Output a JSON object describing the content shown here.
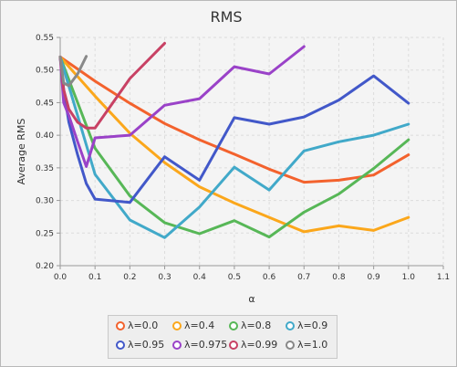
{
  "chart_data": {
    "type": "line",
    "title": "RMS",
    "xlabel": "α",
    "ylabel": "Average RMS",
    "xlim": [
      0.0,
      1.1
    ],
    "ylim": [
      0.2,
      0.55
    ],
    "xticks": [
      "0.0",
      "0.1",
      "0.2",
      "0.3",
      "0.4",
      "0.5",
      "0.6",
      "0.7",
      "0.8",
      "0.9",
      "1.0",
      "1.1"
    ],
    "yticks": [
      "0.20",
      "0.25",
      "0.30",
      "0.35",
      "0.40",
      "0.45",
      "0.50",
      "0.55"
    ],
    "grid": true,
    "legend_position": "bottom",
    "series": [
      {
        "name": "λ=0.0",
        "color": "#f3622d",
        "x": [
          0.0,
          0.1,
          0.2,
          0.3,
          0.4,
          0.5,
          0.6,
          0.7,
          0.8,
          0.9,
          1.0
        ],
        "y": [
          0.52,
          0.483,
          0.449,
          0.418,
          0.393,
          0.371,
          0.348,
          0.328,
          0.331,
          0.339,
          0.37
        ]
      },
      {
        "name": "λ=0.4",
        "color": "#fba71b",
        "x": [
          0.0,
          0.1,
          0.2,
          0.3,
          0.4,
          0.5,
          0.6,
          0.7,
          0.8,
          0.9,
          1.0
        ],
        "y": [
          0.52,
          0.46,
          0.403,
          0.358,
          0.321,
          0.296,
          0.274,
          0.252,
          0.261,
          0.254,
          0.274
        ]
      },
      {
        "name": "λ=0.8",
        "color": "#57b757",
        "x": [
          0.0,
          0.1,
          0.2,
          0.3,
          0.4,
          0.5,
          0.6,
          0.7,
          0.8,
          0.9,
          1.0
        ],
        "y": [
          0.52,
          0.38,
          0.307,
          0.266,
          0.249,
          0.269,
          0.244,
          0.282,
          0.31,
          0.349,
          0.393
        ]
      },
      {
        "name": "λ=0.9",
        "color": "#41a9c9",
        "x": [
          0.0,
          0.1,
          0.2,
          0.3,
          0.4,
          0.5,
          0.6,
          0.7,
          0.8,
          0.9,
          1.0
        ],
        "y": [
          0.52,
          0.34,
          0.27,
          0.243,
          0.29,
          0.351,
          0.316,
          0.376,
          0.39,
          0.4,
          0.417
        ]
      },
      {
        "name": "λ=0.95",
        "color": "#4258c9",
        "x": [
          0.0,
          0.01,
          0.025,
          0.05,
          0.075,
          0.1,
          0.2,
          0.3,
          0.4,
          0.5,
          0.6,
          0.7,
          0.8,
          0.9,
          1.0
        ],
        "y": [
          0.52,
          0.47,
          0.42,
          0.37,
          0.326,
          0.302,
          0.297,
          0.367,
          0.331,
          0.427,
          0.417,
          0.428,
          0.454,
          0.491,
          0.449
        ]
      },
      {
        "name": "λ=0.975",
        "color": "#9a42c8",
        "x": [
          0.0,
          0.01,
          0.025,
          0.05,
          0.075,
          0.1,
          0.2,
          0.3,
          0.4,
          0.5,
          0.6,
          0.7
        ],
        "y": [
          0.52,
          0.45,
          0.43,
          0.39,
          0.352,
          0.396,
          0.4,
          0.446,
          0.456,
          0.505,
          0.494,
          0.536
        ]
      },
      {
        "name": "λ=0.99",
        "color": "#c84164",
        "x": [
          0.0,
          0.01,
          0.025,
          0.05,
          0.075,
          0.1,
          0.2,
          0.3
        ],
        "y": [
          0.52,
          0.47,
          0.44,
          0.42,
          0.411,
          0.411,
          0.487,
          0.541
        ]
      },
      {
        "name": "λ=1.0",
        "color": "#888888",
        "x": [
          0.0,
          0.01,
          0.025,
          0.05,
          0.075
        ],
        "y": [
          0.52,
          0.48,
          0.476,
          0.494,
          0.521
        ]
      }
    ]
  }
}
